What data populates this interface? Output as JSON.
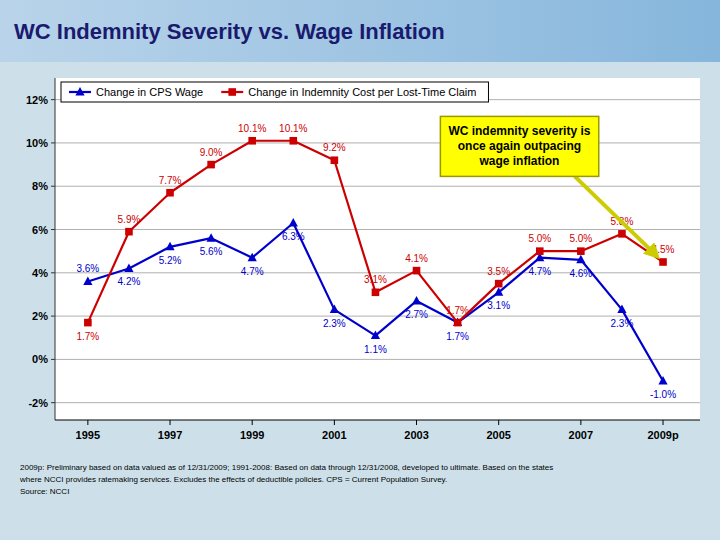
{
  "chart_data": {
    "type": "line",
    "title": "WC Indemnity Severity vs. Wage Inflation",
    "x": [
      1995,
      1996,
      1997,
      1998,
      1999,
      2000,
      2001,
      2002,
      2003,
      2004,
      2005,
      2006,
      2007,
      2008,
      2009
    ],
    "xlim": [
      1994.2,
      2009.9
    ],
    "xticks": [
      1995,
      1997,
      1999,
      2001,
      2003,
      2005,
      2007,
      {
        "value": 2009,
        "label": "2009p"
      }
    ],
    "ylim": [
      -2.8,
      13.0
    ],
    "yticks": [
      {
        "value": -2,
        "label": "-2%"
      },
      {
        "value": 0,
        "label": "0%"
      },
      {
        "value": 2,
        "label": "2%"
      },
      {
        "value": 4,
        "label": "4%"
      },
      {
        "value": 6,
        "label": "6%"
      },
      {
        "value": 8,
        "label": "8%"
      },
      {
        "value": 10,
        "label": "10%"
      },
      {
        "value": 12,
        "label": "12%"
      }
    ],
    "grid": true,
    "legend": "upper left",
    "data_labels": true,
    "series": [
      {
        "name": "Change in CPS Wage",
        "color": "#0000cc",
        "marker": "triangle",
        "values": [
          3.6,
          4.2,
          5.2,
          5.6,
          4.7,
          6.3,
          2.3,
          1.1,
          2.7,
          1.7,
          3.1,
          4.7,
          4.6,
          2.3,
          -1.0
        ],
        "value_labels": [
          "3.6%",
          "4.2%",
          "5.2%",
          "5.6%",
          "4.7%",
          "6.3%",
          "2.3%",
          "1.1%",
          "2.7%",
          "1.7%",
          "3.1%",
          "4.7%",
          "4.6%",
          "2.3%",
          "-1.0%"
        ]
      },
      {
        "name": "Change in Indemnity Cost per Lost-Time Claim",
        "color": "#cc0000",
        "marker": "square",
        "values": [
          1.7,
          5.9,
          7.7,
          9.0,
          10.1,
          10.1,
          9.2,
          3.1,
          4.1,
          1.7,
          3.5,
          5.0,
          5.0,
          5.8,
          4.5
        ],
        "value_labels": [
          "1.7%",
          "5.9%",
          "7.7%",
          "9.0%",
          "10.1%",
          "10.1%",
          "9.2%",
          "3.1%",
          "4.1%",
          "1.7%",
          "3.5%",
          "5.0%",
          "5.0%",
          "5.8%",
          "4.5%"
        ]
      }
    ],
    "annotation": "WC indemnity severity is\nonce again outpacing\nwage inflation",
    "footnote": "2009p: Preliminary based on data valued as of 12/31/2009; 1991-2008: Based on data through 12/31/2008, developed to ultimate. Based on the states\nwhere NCCI provides ratemaking services. Excludes the effects of deductible policies.  CPS = Current Population Survey.\nSource: NCCI"
  }
}
